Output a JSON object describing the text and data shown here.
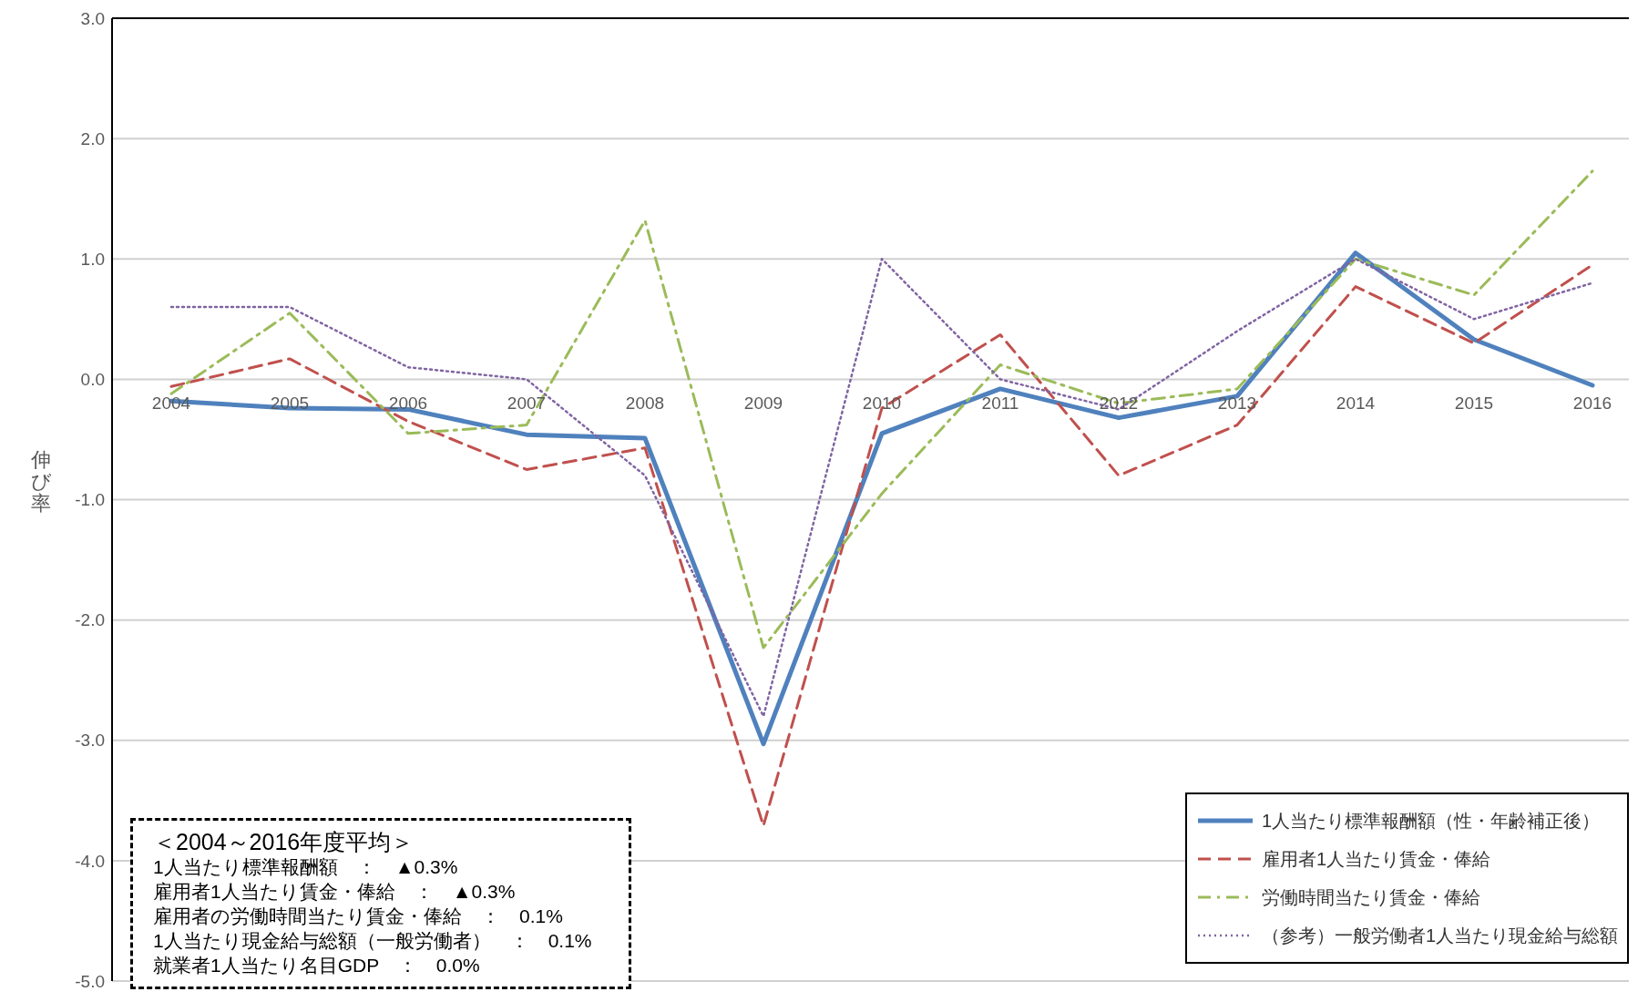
{
  "chart_data": {
    "type": "line",
    "ylabel": "伸び率",
    "categories": [
      "2004",
      "2005",
      "2006",
      "2007",
      "2008",
      "2009",
      "2010",
      "2011",
      "2012",
      "2013",
      "2014",
      "2015",
      "2016"
    ],
    "series": [
      {
        "name": "1人当たり標準報酬額（性・年齢補正後）",
        "color": "#4f81bd",
        "line_style": "solid",
        "values": [
          -0.18,
          -0.24,
          -0.25,
          -0.46,
          -0.49,
          -3.03,
          -0.45,
          -0.08,
          -0.32,
          -0.14,
          1.05,
          0.33,
          -0.05
        ]
      },
      {
        "name": "雇用者1人当たり賃金・俸給",
        "color": "#c0504d",
        "line_style": "dashed",
        "values": [
          -0.06,
          0.17,
          -0.35,
          -0.75,
          -0.57,
          -3.71,
          -0.24,
          0.37,
          -0.8,
          -0.38,
          0.77,
          0.3,
          0.95
        ]
      },
      {
        "name": "労働時間当たり賃金・俸給",
        "color": "#9bbb59",
        "line_style": "dashdot",
        "values": [
          -0.12,
          0.55,
          -0.45,
          -0.38,
          1.32,
          -2.23,
          -0.95,
          0.12,
          -0.2,
          -0.08,
          1.0,
          0.7,
          1.73
        ]
      },
      {
        "name": "（参考）一般労働者1人当たり現金給与総額",
        "color": "#8064a2",
        "line_style": "dotted",
        "values": [
          0.6,
          0.6,
          0.1,
          0.0,
          -0.8,
          -2.8,
          1.0,
          0.0,
          -0.25,
          0.4,
          1.0,
          0.5,
          0.8
        ]
      }
    ],
    "ylim": [
      -5,
      3
    ],
    "yticks": [
      {
        "value": -5,
        "label": "-5.0"
      },
      {
        "value": -4,
        "label": "-4.0"
      },
      {
        "value": -3,
        "label": "-3.0"
      },
      {
        "value": -2,
        "label": "-2.0"
      },
      {
        "value": -1,
        "label": "-1.0"
      },
      {
        "value": 0,
        "label": "0.0"
      },
      {
        "value": 1,
        "label": "1.0"
      },
      {
        "value": 2,
        "label": "2.0"
      },
      {
        "value": 3,
        "label": "3.0"
      }
    ],
    "grid": "y",
    "legend": "bottom right",
    "marker": "none",
    "annotations": [
      "＜2004～2016年度平均＞",
      "1人当たり標準報酬額　：　▲0.3%",
      "雇用者1人当たり賃金・俸給　：　▲0.3%",
      "雇用者の労働時間当たり賃金・俸給　：　0.1%",
      "1人当たり現金給与総額（一般労働者）　：　0.1%",
      "就業者1人当たり名目GDP　：　0.0%"
    ]
  }
}
